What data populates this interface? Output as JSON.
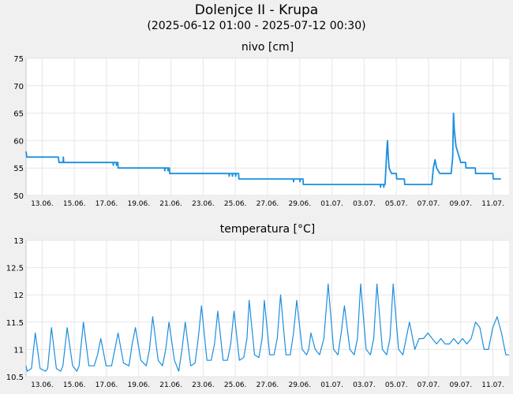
{
  "header": {
    "title": "Dolenjce II - Krupa",
    "subtitle": "(2025-06-12 01:00 - 2025-07-12 00:30)"
  },
  "chart_data": [
    {
      "type": "line",
      "title": "nivo [cm]",
      "xlabel": "",
      "ylabel": "",
      "ylim": [
        50,
        75
      ],
      "yticks": [
        50,
        55,
        60,
        65,
        70,
        75
      ],
      "xlim_days": [
        0,
        30
      ],
      "xtick_labels": [
        "13.06.",
        "15.06.",
        "17.06.",
        "19.06.",
        "21.06.",
        "23.06.",
        "25.06.",
        "27.06.",
        "29.06.",
        "01.07.",
        "03.07.",
        "05.07.",
        "07.07.",
        "09.07.",
        "11.07."
      ],
      "color": "#1a8fdd",
      "grid": true,
      "series": [
        {
          "values": [
            [
              0.0,
              58
            ],
            [
              0.05,
              57
            ],
            [
              2.0,
              57
            ],
            [
              2.05,
              56
            ],
            [
              2.3,
              56
            ],
            [
              2.32,
              57
            ],
            [
              2.34,
              56
            ],
            [
              5.4,
              56
            ],
            [
              5.42,
              55.5
            ],
            [
              5.44,
              56
            ],
            [
              5.6,
              56
            ],
            [
              5.62,
              55.5
            ],
            [
              5.64,
              56
            ],
            [
              5.7,
              56
            ],
            [
              5.72,
              55
            ],
            [
              8.6,
              55
            ],
            [
              8.62,
              54.5
            ],
            [
              8.64,
              55
            ],
            [
              8.8,
              55
            ],
            [
              8.82,
              54.5
            ],
            [
              8.84,
              55
            ],
            [
              8.9,
              55
            ],
            [
              8.92,
              54
            ],
            [
              12.6,
              54
            ],
            [
              12.62,
              53.5
            ],
            [
              12.64,
              54
            ],
            [
              12.8,
              54
            ],
            [
              12.82,
              53.5
            ],
            [
              12.84,
              54
            ],
            [
              13.0,
              54
            ],
            [
              13.02,
              53.5
            ],
            [
              13.04,
              54
            ],
            [
              13.2,
              54
            ],
            [
              13.22,
              53
            ],
            [
              16.6,
              53
            ],
            [
              16.62,
              52.5
            ],
            [
              16.64,
              53
            ],
            [
              17.0,
              53
            ],
            [
              17.02,
              52.5
            ],
            [
              17.04,
              53
            ],
            [
              17.2,
              53
            ],
            [
              17.22,
              52
            ],
            [
              22.0,
              52
            ],
            [
              22.02,
              51.5
            ],
            [
              22.04,
              52
            ],
            [
              22.2,
              52
            ],
            [
              22.22,
              51.5
            ],
            [
              22.24,
              52
            ],
            [
              22.3,
              52
            ],
            [
              22.4,
              58
            ],
            [
              22.45,
              60
            ],
            [
              22.5,
              57
            ],
            [
              22.55,
              55
            ],
            [
              22.7,
              54
            ],
            [
              23.0,
              54
            ],
            [
              23.02,
              53
            ],
            [
              23.5,
              53
            ],
            [
              23.52,
              52
            ],
            [
              25.2,
              52
            ],
            [
              25.3,
              55
            ],
            [
              25.4,
              56.5
            ],
            [
              25.5,
              55
            ],
            [
              25.7,
              54
            ],
            [
              26.4,
              54
            ],
            [
              26.5,
              57
            ],
            [
              26.55,
              65
            ],
            [
              26.6,
              62
            ],
            [
              26.7,
              59
            ],
            [
              26.9,
              57
            ],
            [
              27.0,
              56
            ],
            [
              27.3,
              56
            ],
            [
              27.32,
              55
            ],
            [
              27.9,
              55
            ],
            [
              27.92,
              54
            ],
            [
              29.0,
              54
            ],
            [
              29.02,
              53
            ],
            [
              29.5,
              53
            ]
          ]
        }
      ]
    },
    {
      "type": "line",
      "title": "temperatura [°C]",
      "xlabel": "",
      "ylabel": "",
      "ylim": [
        10.5,
        13
      ],
      "yticks": [
        10.5,
        11,
        11.5,
        12,
        12.5,
        13
      ],
      "xlim_days": [
        0,
        30
      ],
      "xtick_labels": [
        "13.06.",
        "15.06.",
        "17.06.",
        "19.06.",
        "21.06.",
        "23.06.",
        "25.06.",
        "27.06.",
        "29.06.",
        "01.07.",
        "03.07.",
        "05.07.",
        "07.07.",
        "09.07.",
        "11.07."
      ],
      "color": "#1a8fdd",
      "grid": true,
      "series": [
        {
          "values": [
            [
              0.0,
              10.7
            ],
            [
              0.1,
              10.6
            ],
            [
              0.5,
              10.65
            ],
            [
              0.85,
              11.3
            ],
            [
              1.3,
              10.65
            ],
            [
              1.8,
              10.6
            ],
            [
              2.0,
              10.65
            ],
            [
              2.35,
              11.4
            ],
            [
              2.8,
              10.65
            ],
            [
              3.2,
              10.6
            ],
            [
              3.4,
              10.7
            ],
            [
              3.8,
              11.4
            ],
            [
              4.3,
              10.7
            ],
            [
              4.7,
              10.6
            ],
            [
              4.9,
              10.7
            ],
            [
              5.3,
              11.5
            ],
            [
              5.8,
              10.7
            ],
            [
              6.3,
              10.7
            ],
            [
              6.6,
              10.9
            ],
            [
              6.9,
              11.2
            ],
            [
              7.4,
              10.7
            ],
            [
              7.9,
              10.7
            ],
            [
              8.2,
              11.0
            ],
            [
              8.5,
              11.3
            ],
            [
              9.0,
              10.75
            ],
            [
              9.5,
              10.7
            ],
            [
              9.8,
              11.1
            ],
            [
              10.1,
              11.4
            ],
            [
              10.6,
              10.8
            ],
            [
              11.1,
              10.7
            ],
            [
              11.4,
              11.0
            ],
            [
              11.7,
              11.6
            ],
            [
              12.2,
              10.8
            ],
            [
              12.6,
              10.7
            ],
            [
              12.9,
              11.0
            ],
            [
              13.2,
              11.5
            ],
            [
              13.7,
              10.8
            ],
            [
              14.1,
              10.6
            ],
            [
              14.4,
              11.0
            ],
            [
              14.7,
              11.5
            ],
            [
              15.2,
              10.7
            ],
            [
              15.6,
              10.75
            ],
            [
              15.9,
              11.2
            ],
            [
              16.2,
              11.8
            ],
            [
              16.7,
              10.8
            ],
            [
              17.1,
              10.8
            ],
            [
              17.4,
              11.1
            ],
            [
              17.7,
              11.7
            ],
            [
              18.2,
              10.8
            ],
            [
              18.6,
              10.8
            ],
            [
              18.9,
              11.1
            ],
            [
              19.2,
              11.7
            ],
            [
              19.7,
              10.8
            ],
            [
              20.1,
              10.85
            ],
            [
              20.4,
              11.2
            ],
            [
              20.6,
              11.9
            ],
            [
              21.1,
              10.9
            ],
            [
              21.5,
              10.85
            ],
            [
              21.8,
              11.2
            ],
            [
              22.0,
              11.9
            ],
            [
              22.5,
              10.9
            ],
            [
              22.9,
              10.9
            ],
            [
              23.2,
              11.2
            ],
            [
              23.5,
              12.0
            ],
            [
              24.0,
              10.9
            ],
            [
              24.4,
              10.9
            ],
            [
              24.7,
              11.3
            ],
            [
              25.0,
              11.9
            ],
            [
              25.5,
              11.0
            ],
            [
              25.9,
              10.9
            ],
            [
              26.1,
              11.0
            ],
            [
              26.3,
              11.3
            ],
            [
              26.7,
              11.0
            ],
            [
              27.1,
              10.9
            ],
            [
              27.5,
              11.2
            ],
            [
              27.9,
              12.2
            ],
            [
              28.4,
              11.0
            ],
            [
              28.8,
              10.9
            ],
            [
              29.1,
              11.3
            ],
            [
              29.4,
              11.8
            ],
            [
              29.9,
              11.0
            ],
            [
              30.3,
              10.9
            ],
            [
              30.6,
              11.2
            ],
            [
              30.9,
              12.2
            ],
            [
              31.4,
              11.0
            ],
            [
              31.8,
              10.9
            ],
            [
              32.1,
              11.2
            ],
            [
              32.4,
              12.2
            ],
            [
              32.9,
              11.0
            ],
            [
              33.3,
              10.9
            ],
            [
              33.6,
              11.2
            ],
            [
              33.9,
              12.2
            ],
            [
              34.4,
              11.0
            ],
            [
              34.8,
              10.9
            ],
            [
              35.1,
              11.2
            ],
            [
              35.4,
              11.5
            ],
            [
              35.9,
              11.0
            ],
            [
              36.3,
              11.2
            ],
            [
              36.7,
              11.2
            ],
            [
              37.1,
              11.3
            ],
            [
              37.5,
              11.2
            ],
            [
              37.9,
              11.1
            ],
            [
              38.3,
              11.2
            ],
            [
              38.7,
              11.1
            ],
            [
              39.1,
              11.1
            ],
            [
              39.5,
              11.2
            ],
            [
              39.9,
              11.1
            ],
            [
              40.3,
              11.2
            ],
            [
              40.7,
              11.1
            ],
            [
              41.1,
              11.2
            ],
            [
              41.5,
              11.5
            ],
            [
              41.9,
              11.4
            ],
            [
              42.3,
              11.0
            ],
            [
              42.7,
              11.0
            ],
            [
              43.1,
              11.4
            ],
            [
              43.5,
              11.6
            ],
            [
              43.9,
              11.3
            ],
            [
              44.3,
              10.9
            ],
            [
              44.6,
              10.9
            ]
          ]
        }
      ]
    }
  ]
}
